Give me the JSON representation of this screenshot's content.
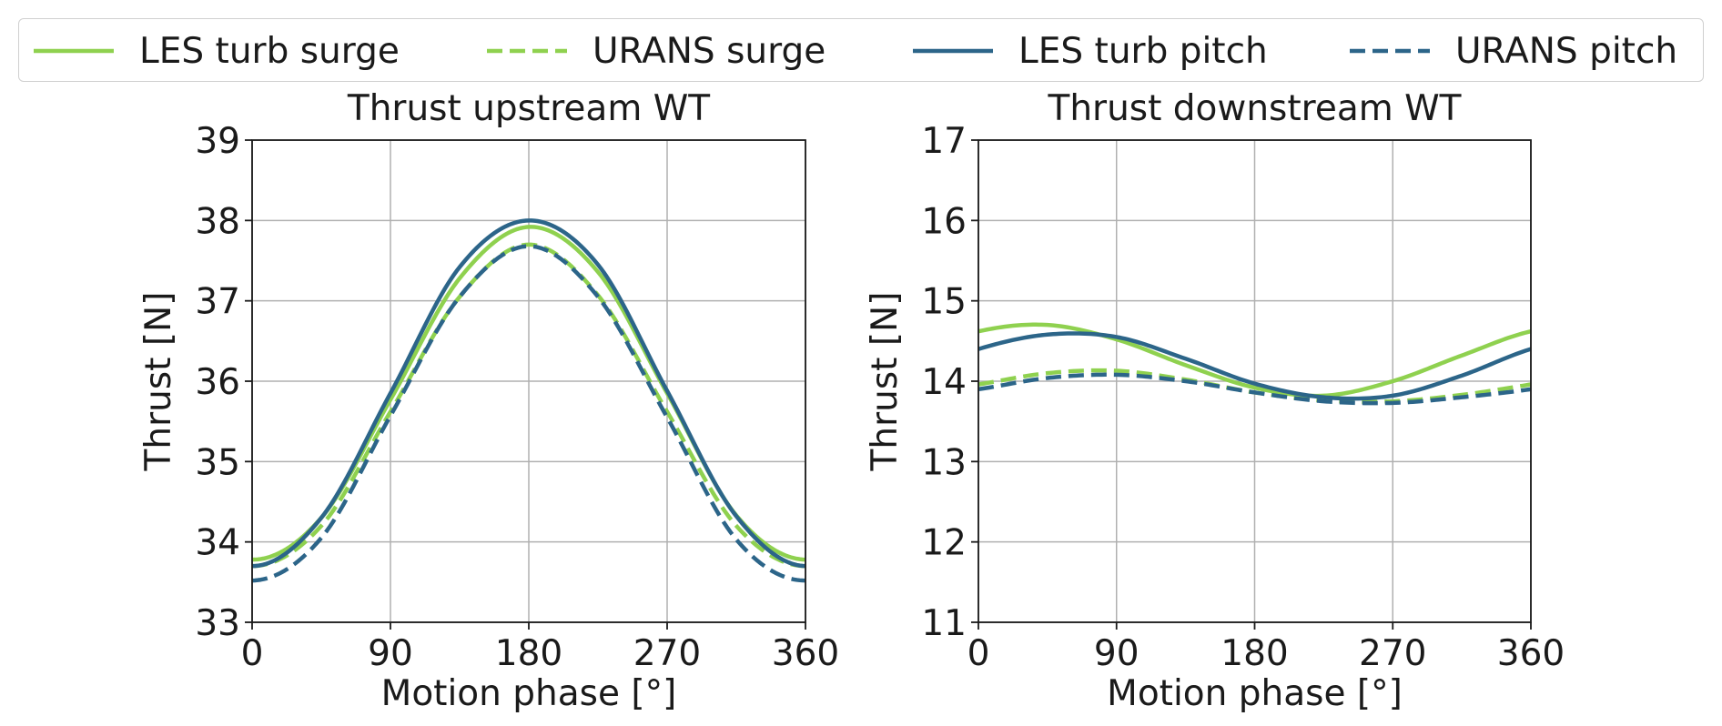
{
  "legend": {
    "placement": "top",
    "entries": [
      {
        "label": "LES turb surge",
        "color": "#8fd14f",
        "dash": "solid"
      },
      {
        "label": "URANS surge",
        "color": "#8fd14f",
        "dash": "dashed"
      },
      {
        "label": "LES turb pitch",
        "color": "#2c6589",
        "dash": "solid"
      },
      {
        "label": "URANS pitch",
        "color": "#2c6589",
        "dash": "dashed"
      }
    ]
  },
  "chart_data": [
    {
      "type": "line",
      "title": "Thrust upstream WT",
      "xlabel": "Motion phase [°]",
      "ylabel": "Thrust [N]",
      "xlim": [
        0,
        360
      ],
      "ylim": [
        33,
        39
      ],
      "xticks": [
        0,
        90,
        180,
        270,
        360
      ],
      "yticks": [
        33,
        34,
        35,
        36,
        37,
        38,
        39
      ],
      "grid": true,
      "x": [
        0,
        45,
        90,
        135,
        180,
        225,
        270,
        315,
        360
      ],
      "series": [
        {
          "name": "LES turb surge",
          "color": "#8fd14f",
          "dash": "solid",
          "values": [
            33.78,
            34.3,
            35.77,
            37.28,
            37.92,
            37.36,
            35.85,
            34.33,
            33.78
          ]
        },
        {
          "name": "URANS surge",
          "color": "#8fd14f",
          "dash": "dashed",
          "values": [
            33.7,
            34.2,
            35.62,
            37.05,
            37.7,
            37.07,
            35.62,
            34.2,
            33.7
          ]
        },
        {
          "name": "LES turb pitch",
          "color": "#2c6589",
          "dash": "solid",
          "values": [
            33.7,
            34.3,
            35.85,
            37.42,
            38.0,
            37.45,
            35.88,
            34.32,
            33.7
          ]
        },
        {
          "name": "URANS pitch",
          "color": "#2c6589",
          "dash": "dashed",
          "values": [
            33.52,
            34.05,
            35.57,
            37.05,
            37.68,
            37.05,
            35.55,
            34.03,
            33.52
          ]
        }
      ]
    },
    {
      "type": "line",
      "title": "Thrust downstream WT",
      "xlabel": "Motion phase [°]",
      "ylabel": "Thrust [N]",
      "xlim": [
        0,
        360
      ],
      "ylim": [
        11,
        17
      ],
      "xticks": [
        0,
        90,
        180,
        270,
        360
      ],
      "yticks": [
        11,
        12,
        13,
        14,
        15,
        16,
        17
      ],
      "grid": true,
      "x": [
        0,
        45,
        90,
        135,
        180,
        225,
        270,
        315,
        360
      ],
      "series": [
        {
          "name": "LES turb surge",
          "color": "#8fd14f",
          "dash": "solid",
          "values": [
            14.62,
            14.7,
            14.52,
            14.2,
            13.92,
            13.82,
            14.0,
            14.32,
            14.62
          ]
        },
        {
          "name": "URANS surge",
          "color": "#8fd14f",
          "dash": "dashed",
          "values": [
            13.96,
            14.1,
            14.13,
            14.02,
            13.86,
            13.76,
            13.75,
            13.83,
            13.96
          ]
        },
        {
          "name": "LES turb pitch",
          "color": "#2c6589",
          "dash": "solid",
          "values": [
            14.4,
            14.58,
            14.55,
            14.28,
            13.97,
            13.8,
            13.82,
            14.07,
            14.4
          ]
        },
        {
          "name": "URANS pitch",
          "color": "#2c6589",
          "dash": "dashed",
          "values": [
            13.9,
            14.04,
            14.08,
            14.0,
            13.86,
            13.75,
            13.73,
            13.8,
            13.9
          ]
        }
      ]
    }
  ]
}
